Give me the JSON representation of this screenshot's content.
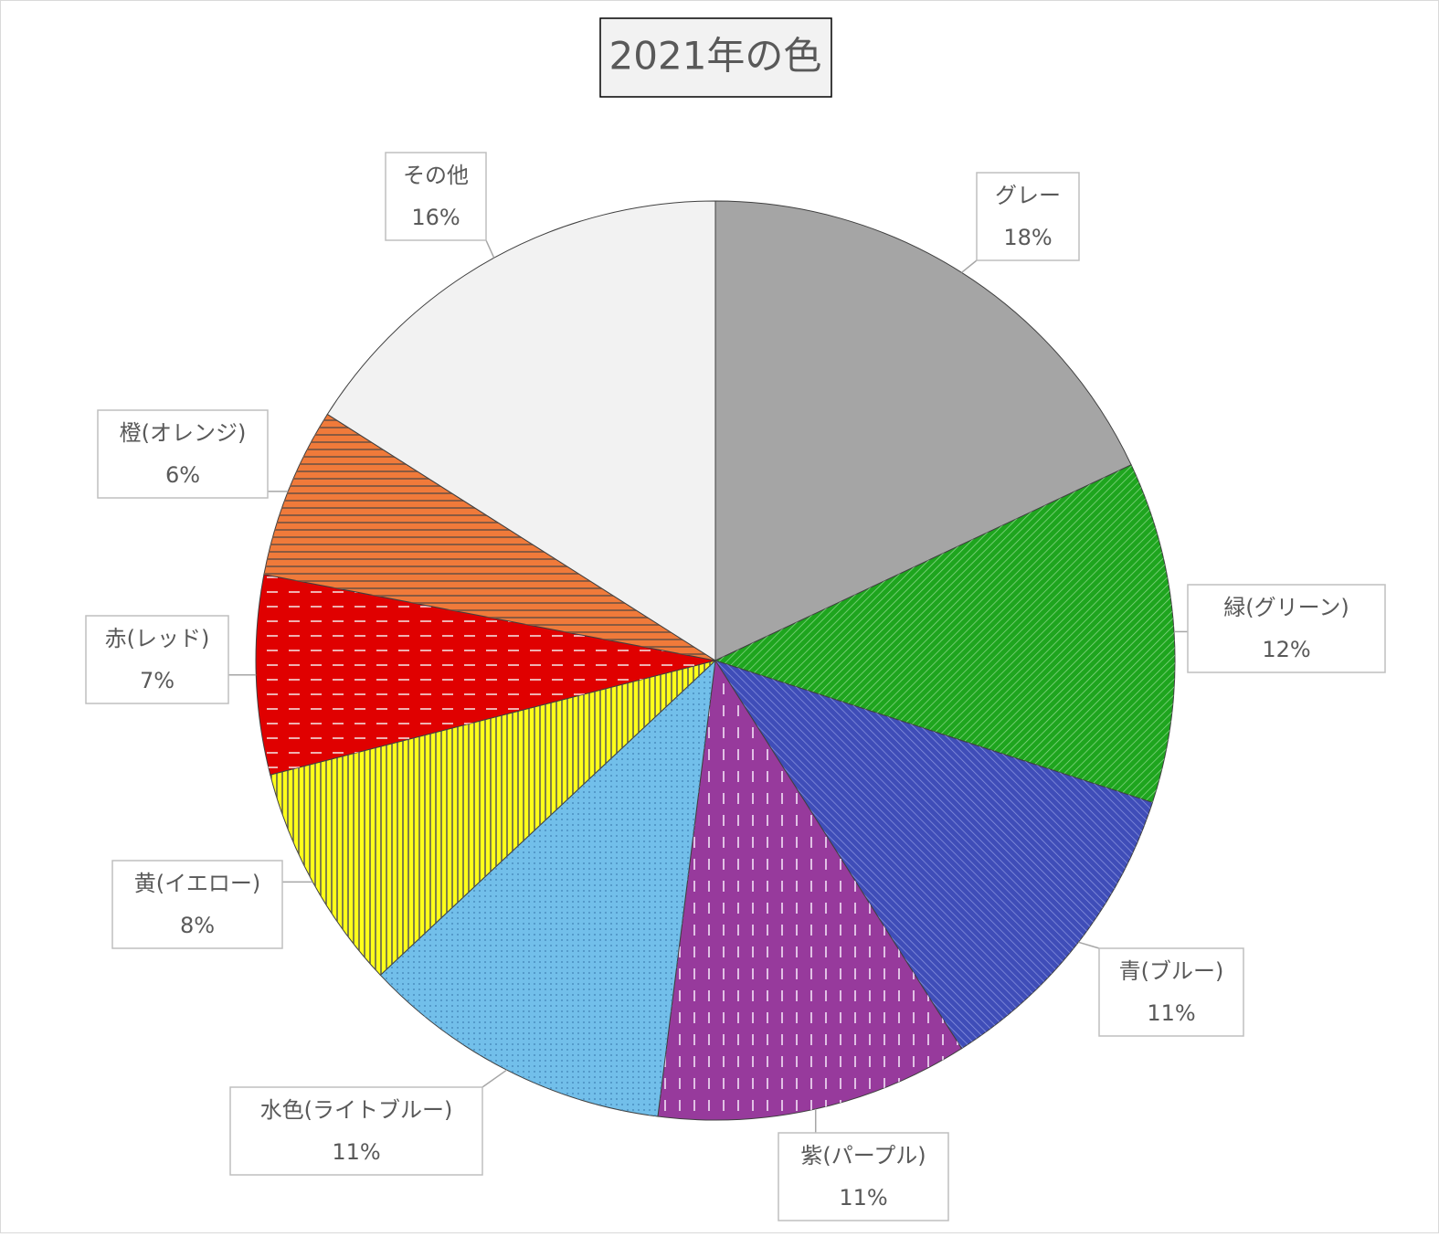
{
  "chart_data": {
    "type": "pie",
    "title": "2021年の色",
    "categories": [
      "グレー",
      "緑(グリーン)",
      "青(ブルー)",
      "紫(パープル)",
      "水色(ライトブルー)",
      "黄(イエロー)",
      "赤(レッド)",
      "橙(オレンジ)",
      "その他"
    ],
    "values": [
      18,
      12,
      11,
      11,
      11,
      8,
      7,
      6,
      16
    ],
    "value_labels": [
      "18%",
      "12%",
      "11%",
      "11%",
      "11%",
      "8%",
      "7%",
      "6%",
      "16%"
    ],
    "colors": [
      "#a5a5a5",
      "#1ea51e",
      "#3f4db8",
      "#973a9c",
      "#72bfea",
      "#ffff1a",
      "#e00000",
      "#f07a3a",
      "#f2f2f2"
    ]
  }
}
